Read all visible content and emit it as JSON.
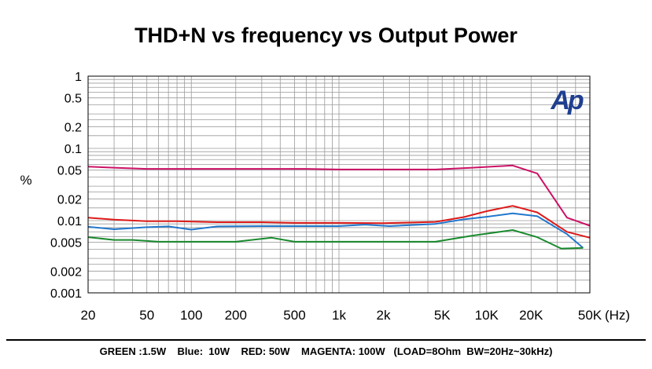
{
  "chart_data": {
    "type": "line",
    "title": "THD+N vs frequency vs Output Power",
    "ylabel": "%",
    "xunit": "(Hz)",
    "xscale": "log",
    "yscale": "log",
    "xlim": [
      20,
      50000
    ],
    "ylim": [
      0.001,
      1
    ],
    "grid": true,
    "y_ticks": [
      {
        "v": 1,
        "label": "1"
      },
      {
        "v": 0.5,
        "label": "0.5"
      },
      {
        "v": 0.2,
        "label": "0.2"
      },
      {
        "v": 0.1,
        "label": "0.1"
      },
      {
        "v": 0.05,
        "label": "0.05"
      },
      {
        "v": 0.02,
        "label": "0.02"
      },
      {
        "v": 0.01,
        "label": "0.01"
      },
      {
        "v": 0.005,
        "label": "0.005"
      },
      {
        "v": 0.002,
        "label": "0.002"
      },
      {
        "v": 0.001,
        "label": "0.001"
      }
    ],
    "x_ticks": [
      {
        "v": 20,
        "label": "20"
      },
      {
        "v": 50,
        "label": "50"
      },
      {
        "v": 100,
        "label": "100"
      },
      {
        "v": 200,
        "label": "200"
      },
      {
        "v": 500,
        "label": "500"
      },
      {
        "v": 1000,
        "label": "1k"
      },
      {
        "v": 2000,
        "label": "2k"
      },
      {
        "v": 5000,
        "label": "5K"
      },
      {
        "v": 10000,
        "label": "10K"
      },
      {
        "v": 20000,
        "label": "20K"
      },
      {
        "v": 50000,
        "label": "50K"
      }
    ],
    "series": [
      {
        "name": "MAGENTA: 100W",
        "color": "#cc1166",
        "x": [
          20,
          30,
          50,
          100,
          300,
          600,
          1000,
          2000,
          4500,
          8000,
          15000,
          22000,
          35000,
          50000
        ],
        "y": [
          0.056,
          0.054,
          0.052,
          0.052,
          0.052,
          0.052,
          0.051,
          0.051,
          0.051,
          0.054,
          0.058,
          0.045,
          0.011,
          0.0085
        ]
      },
      {
        "name": "RED: 50W",
        "color": "#dd1a1a",
        "x": [
          20,
          30,
          50,
          80,
          150,
          300,
          500,
          1000,
          2000,
          4500,
          7000,
          10000,
          15000,
          22000,
          35000,
          50000
        ],
        "y": [
          0.011,
          0.0103,
          0.0098,
          0.0098,
          0.0095,
          0.0095,
          0.0093,
          0.0093,
          0.0092,
          0.0096,
          0.0112,
          0.0135,
          0.016,
          0.013,
          0.007,
          0.0058
        ]
      },
      {
        "name": "Blue: 10W",
        "color": "#2277cc",
        "x": [
          20,
          30,
          50,
          70,
          100,
          150,
          300,
          600,
          1000,
          1500,
          2200,
          4500,
          7000,
          10000,
          15000,
          22000,
          35000,
          45000
        ],
        "y": [
          0.0082,
          0.0076,
          0.0081,
          0.0083,
          0.0075,
          0.0083,
          0.0084,
          0.0084,
          0.0084,
          0.0088,
          0.0084,
          0.009,
          0.0104,
          0.0113,
          0.0126,
          0.0115,
          0.0065,
          0.0042
        ]
      },
      {
        "name": "GREEN :1.5W",
        "color": "#1a8a2e",
        "x": [
          20,
          30,
          40,
          60,
          100,
          200,
          350,
          500,
          1000,
          2000,
          4500,
          8000,
          15000,
          22000,
          32000,
          45000
        ],
        "y": [
          0.0059,
          0.0054,
          0.0054,
          0.0051,
          0.0051,
          0.0051,
          0.0058,
          0.0051,
          0.0051,
          0.0051,
          0.0051,
          0.0062,
          0.0074,
          0.0059,
          0.0041,
          0.0042
        ]
      }
    ],
    "legend_text": "GREEN :1.5W    Blue:  10W    RED: 50W    MAGENTA: 100W   (LOAD=8Ohm  BW=20Hz~30kHz)",
    "logo_text": "Ap",
    "logo_color": "#1f3f8f"
  }
}
